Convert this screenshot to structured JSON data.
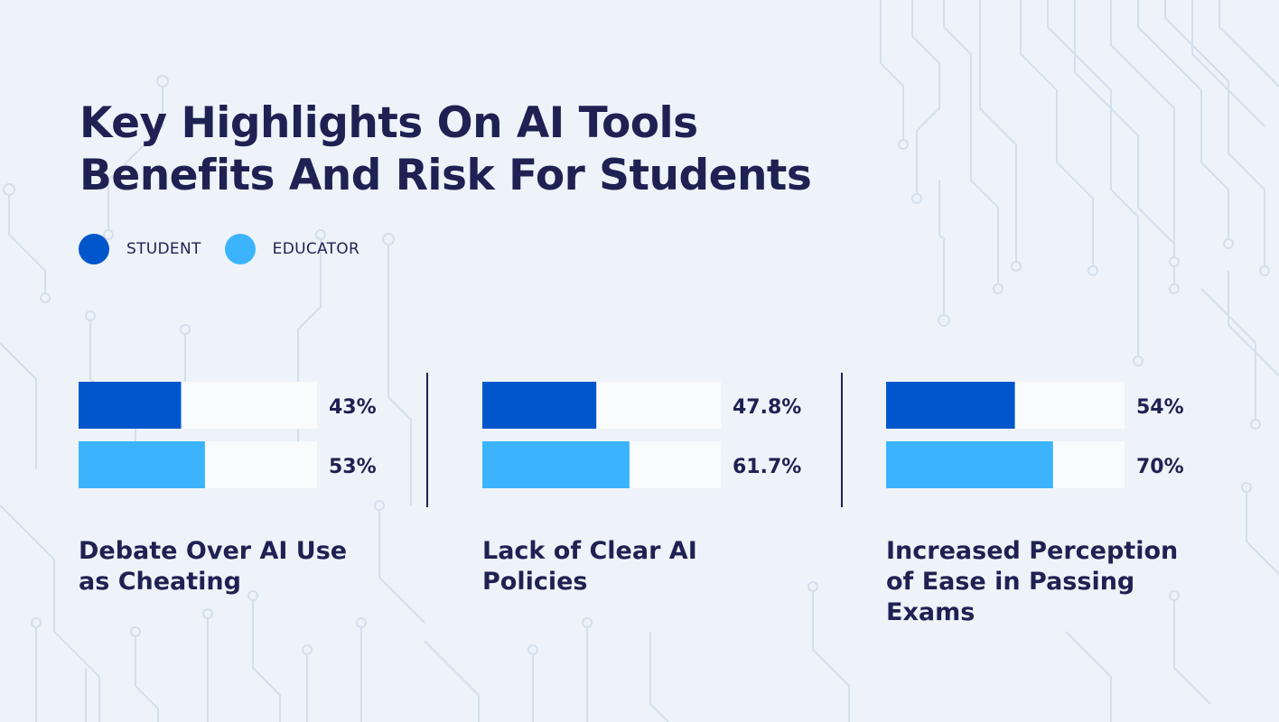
{
  "title": {
    "line1": "Key Highlights On AI Tools",
    "line2": "Benefits And Risk For Students"
  },
  "legend": [
    {
      "label": "STUDENT",
      "color": "#0057cc"
    },
    {
      "label": "EDUCATOR",
      "color": "#3cb4fd"
    }
  ],
  "colors": {
    "background": "#eef3f9",
    "track": "#f9fbfd",
    "text": "#1e2152",
    "divider": "#1e2152"
  },
  "chart_data": {
    "type": "bar",
    "orientation": "horizontal",
    "categories": [
      "Debate Over AI Use as Cheating",
      "Lack of Clear AI Policies",
      "Increased Perception of Ease in Passing Exams"
    ],
    "series": [
      {
        "name": "STUDENT",
        "values": [
          43,
          47.8,
          54
        ],
        "labels": [
          "43%",
          "47.8%",
          "54%"
        ]
      },
      {
        "name": "EDUCATOR",
        "values": [
          53,
          61.7,
          70
        ],
        "labels": [
          "53%",
          "61.7%",
          "70%"
        ]
      }
    ],
    "xlim": [
      0,
      100
    ],
    "unit": "%",
    "legend_position": "top-left",
    "grid": false
  }
}
